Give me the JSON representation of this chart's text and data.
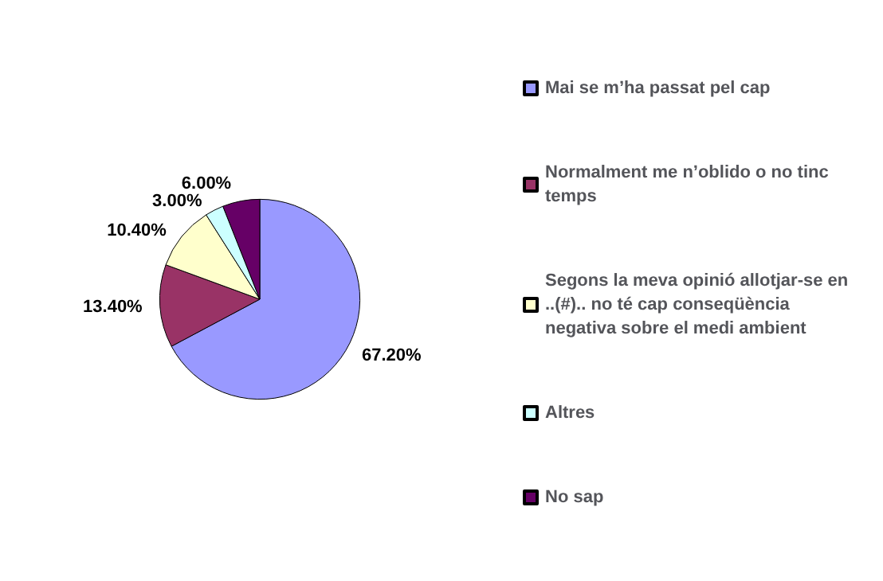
{
  "chart_data": {
    "type": "pie",
    "categories": [
      "Mai se m’ha passat pel cap",
      "Normalment me n’oblido o no tinc temps",
      "Segons la meva opinió allotjar-se en ..(#).. no té cap conseqüència negativa sobre el medi ambient",
      "Altres",
      "No sap"
    ],
    "values": [
      67.2,
      13.4,
      10.4,
      3.0,
      6.0
    ],
    "colors": [
      "#9999ff",
      "#993366",
      "#ffffcc",
      "#ccffff",
      "#660066"
    ],
    "value_labels": [
      "67.20%",
      "13.40%",
      "10.40%",
      "3.00%",
      "6.00%"
    ],
    "legend": "right"
  }
}
